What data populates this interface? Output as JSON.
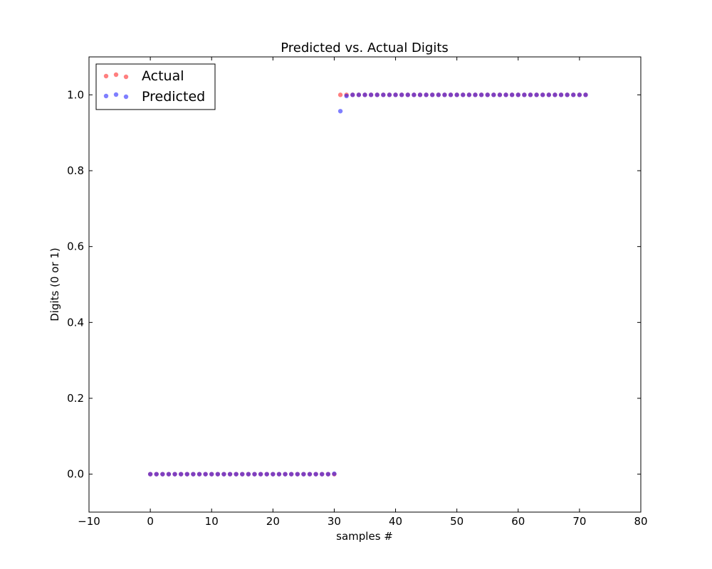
{
  "chart_data": {
    "type": "scatter",
    "title": "Predicted vs. Actual Digits",
    "xlabel": "samples #",
    "ylabel": "Digits (0 or 1)",
    "xlim": [
      -10,
      80
    ],
    "ylim": [
      -0.1,
      1.1
    ],
    "xticks": [
      -10,
      0,
      10,
      20,
      30,
      40,
      50,
      60,
      70,
      80
    ],
    "xtick_labels": [
      "−10",
      "0",
      "10",
      "20",
      "30",
      "40",
      "50",
      "60",
      "70",
      "80"
    ],
    "yticks": [
      0.0,
      0.2,
      0.4,
      0.6,
      0.8,
      1.0
    ],
    "ytick_labels": [
      "0.0",
      "0.2",
      "0.4",
      "0.6",
      "0.8",
      "1.0"
    ],
    "grid": false,
    "legend_position": "top-left",
    "series": [
      {
        "name": "Actual",
        "color": "#ff0000",
        "alpha": 0.5,
        "x": [
          0,
          1,
          2,
          3,
          4,
          5,
          6,
          7,
          8,
          9,
          10,
          11,
          12,
          13,
          14,
          15,
          16,
          17,
          18,
          19,
          20,
          21,
          22,
          23,
          24,
          25,
          26,
          27,
          28,
          29,
          30,
          31,
          32,
          33,
          34,
          35,
          36,
          37,
          38,
          39,
          40,
          41,
          42,
          43,
          44,
          45,
          46,
          47,
          48,
          49,
          50,
          51,
          52,
          53,
          54,
          55,
          56,
          57,
          58,
          59,
          60,
          61,
          62,
          63,
          64,
          65,
          66,
          67,
          68,
          69,
          70,
          71
        ],
        "y": [
          0,
          0,
          0,
          0,
          0,
          0,
          0,
          0,
          0,
          0,
          0,
          0,
          0,
          0,
          0,
          0,
          0,
          0,
          0,
          0,
          0,
          0,
          0,
          0,
          0,
          0,
          0,
          0,
          0,
          0,
          0,
          1,
          1,
          1,
          1,
          1,
          1,
          1,
          1,
          1,
          1,
          1,
          1,
          1,
          1,
          1,
          1,
          1,
          1,
          1,
          1,
          1,
          1,
          1,
          1,
          1,
          1,
          1,
          1,
          1,
          1,
          1,
          1,
          1,
          1,
          1,
          1,
          1,
          1,
          1,
          1,
          1
        ]
      },
      {
        "name": "Predicted",
        "color": "#0000ff",
        "alpha": 0.5,
        "x": [
          0,
          1,
          2,
          3,
          4,
          5,
          6,
          7,
          8,
          9,
          10,
          11,
          12,
          13,
          14,
          15,
          16,
          17,
          18,
          19,
          20,
          21,
          22,
          23,
          24,
          25,
          26,
          27,
          28,
          29,
          30,
          31,
          32,
          33,
          34,
          35,
          36,
          37,
          38,
          39,
          40,
          41,
          42,
          43,
          44,
          45,
          46,
          47,
          48,
          49,
          50,
          51,
          52,
          53,
          54,
          55,
          56,
          57,
          58,
          59,
          60,
          61,
          62,
          63,
          64,
          65,
          66,
          67,
          68,
          69,
          70,
          71
        ],
        "y": [
          0,
          0,
          0,
          0,
          0,
          0,
          0,
          0,
          0,
          0,
          0,
          0,
          0,
          0,
          0,
          0,
          0,
          0,
          0,
          0,
          0,
          0,
          0,
          0,
          0,
          0,
          0,
          0,
          0,
          0,
          0.001,
          0.957,
          0.997,
          1,
          1,
          1,
          1,
          1,
          1,
          1,
          1,
          1,
          1,
          1,
          1,
          1,
          1,
          1,
          1,
          1,
          1,
          1,
          1,
          1,
          1,
          1,
          1,
          1,
          1,
          1,
          1,
          1,
          1,
          1,
          1,
          1,
          1,
          1,
          1,
          1,
          1,
          1
        ]
      }
    ]
  }
}
